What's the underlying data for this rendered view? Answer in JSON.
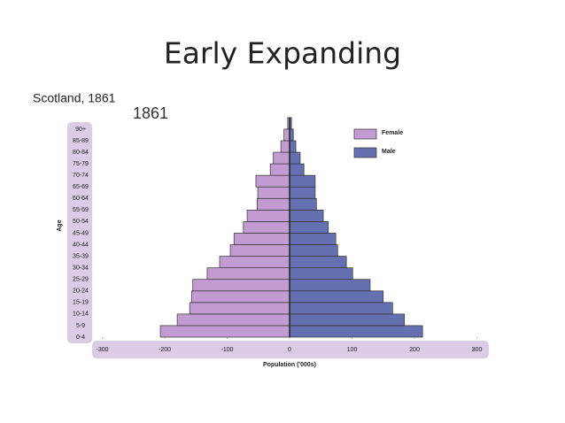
{
  "slide_title": "Early Expanding",
  "subtitle": "Scotland, 1861",
  "chart_data": {
    "type": "bar",
    "orientation": "horizontal",
    "title": "1861",
    "x_label": "Population ('000s)",
    "y_label": "Age",
    "categories": [
      "0-4",
      "5-9",
      "10-14",
      "15-19",
      "20-24",
      "25-29",
      "30-34",
      "35-39",
      "40-44",
      "45-49",
      "50-54",
      "55-59",
      "60-64",
      "65-69",
      "70-74",
      "75-79",
      "80-84",
      "85-89",
      "90+"
    ],
    "series": [
      {
        "name": "Female",
        "color": "#c39bd3",
        "values": [
          -207,
          -180,
          -160,
          -157,
          -155,
          -132,
          -112,
          -95,
          -89,
          -74,
          -68,
          -52,
          -51,
          -54,
          -31,
          -26,
          -14,
          -9,
          -3
        ]
      },
      {
        "name": "Male",
        "color": "#6570b0",
        "values": [
          213,
          184,
          165,
          150,
          129,
          101,
          91,
          77,
          74,
          62,
          54,
          43,
          41,
          41,
          23,
          17,
          10,
          6,
          3
        ]
      }
    ],
    "xlim": [
      -300,
      300
    ],
    "xticks": [
      -300,
      -200,
      -100,
      0,
      100,
      200,
      300
    ],
    "legend": "upper right",
    "grid": false
  }
}
